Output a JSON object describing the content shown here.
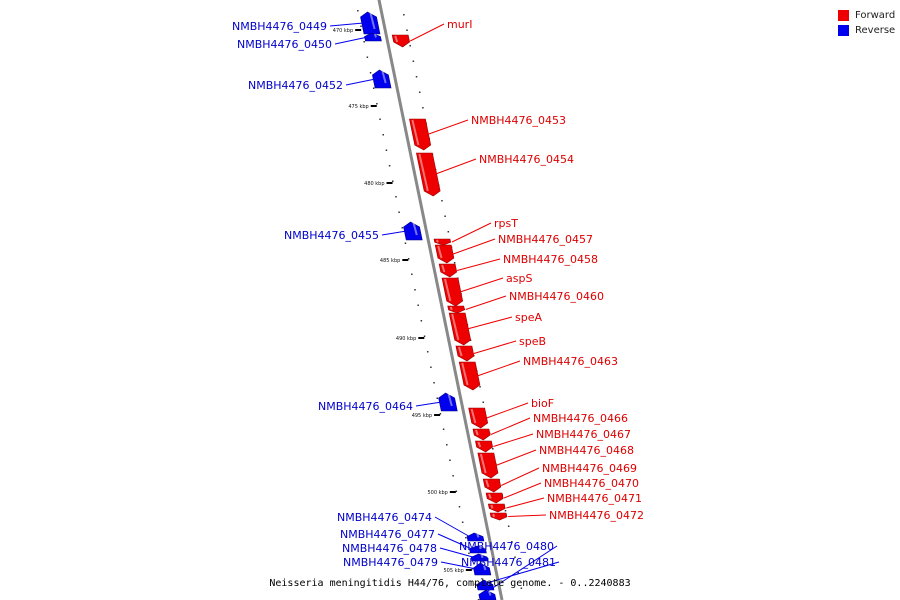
{
  "title": "Neisseria meningitidis H44/76, complete genome. - 0..2240883",
  "legend": [
    {
      "label": "Forward",
      "color": "#ee0000"
    },
    {
      "label": "Reverse",
      "color": "#0000ee"
    }
  ],
  "colors": {
    "forward": "#ee0000",
    "reverse": "#0000ee",
    "backbone": "#888888"
  },
  "ticks": [
    "470 kbp",
    "475 kbp",
    "480 kbp",
    "485 kbp",
    "490 kbp",
    "495 kbp",
    "500 kbp",
    "505 kbp"
  ],
  "genes": [
    {
      "name": "NMBH4476_0449",
      "strand": "reverse"
    },
    {
      "name": "murI",
      "strand": "forward"
    },
    {
      "name": "NMBH4476_0450",
      "strand": "reverse"
    },
    {
      "name": "NMBH4476_0452",
      "strand": "reverse"
    },
    {
      "name": "NMBH4476_0453",
      "strand": "forward"
    },
    {
      "name": "NMBH4476_0454",
      "strand": "forward"
    },
    {
      "name": "rpsT",
      "strand": "forward"
    },
    {
      "name": "NMBH4476_0455",
      "strand": "reverse"
    },
    {
      "name": "NMBH4476_0457",
      "strand": "forward"
    },
    {
      "name": "NMBH4476_0458",
      "strand": "forward"
    },
    {
      "name": "aspS",
      "strand": "forward"
    },
    {
      "name": "NMBH4476_0460",
      "strand": "forward"
    },
    {
      "name": "speA",
      "strand": "forward"
    },
    {
      "name": "speB",
      "strand": "forward"
    },
    {
      "name": "NMBH4476_0463",
      "strand": "forward"
    },
    {
      "name": "bioF",
      "strand": "forward"
    },
    {
      "name": "NMBH4476_0464",
      "strand": "reverse"
    },
    {
      "name": "NMBH4476_0466",
      "strand": "forward"
    },
    {
      "name": "NMBH4476_0467",
      "strand": "forward"
    },
    {
      "name": "NMBH4476_0468",
      "strand": "forward"
    },
    {
      "name": "NMBH4476_0469",
      "strand": "forward"
    },
    {
      "name": "NMBH4476_0470",
      "strand": "forward"
    },
    {
      "name": "NMBH4476_0471",
      "strand": "forward"
    },
    {
      "name": "NMBH4476_0472",
      "strand": "forward"
    },
    {
      "name": "NMBH4476_0474",
      "strand": "reverse"
    },
    {
      "name": "NMBH4476_0477",
      "strand": "reverse"
    },
    {
      "name": "NMBH4476_0478",
      "strand": "reverse"
    },
    {
      "name": "NMBH4476_0479",
      "strand": "reverse"
    },
    {
      "name": "NMBH4476_0480",
      "strand": "reverse"
    },
    {
      "name": "NMBH4476_0481",
      "strand": "reverse"
    }
  ]
}
